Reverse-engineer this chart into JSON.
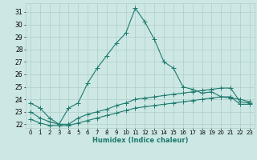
{
  "xlabel": "Humidex (Indice chaleur)",
  "xlim": [
    -0.5,
    23.5
  ],
  "ylim": [
    21.7,
    31.7
  ],
  "xticks": [
    0,
    1,
    2,
    3,
    4,
    5,
    6,
    7,
    8,
    9,
    10,
    11,
    12,
    13,
    14,
    15,
    16,
    17,
    18,
    19,
    20,
    21,
    22,
    23
  ],
  "yticks": [
    22,
    23,
    24,
    25,
    26,
    27,
    28,
    29,
    30,
    31
  ],
  "bg_color": "#cde8e4",
  "grid_color": "#b0ceca",
  "line_color": "#1e7a6e",
  "series1_x": [
    0,
    1,
    2,
    3,
    4,
    5,
    6,
    7,
    8,
    9,
    10,
    11,
    12,
    13,
    14,
    15,
    16,
    17,
    18,
    19,
    20,
    21,
    22,
    23
  ],
  "series1_y": [
    23.7,
    23.3,
    22.5,
    22.0,
    23.3,
    23.7,
    25.3,
    26.5,
    27.5,
    28.5,
    29.3,
    31.3,
    30.2,
    28.8,
    27.0,
    26.5,
    25.0,
    24.8,
    24.5,
    24.6,
    24.2,
    24.1,
    24.0,
    23.8
  ],
  "series2_x": [
    0,
    1,
    2,
    3,
    4,
    5,
    6,
    7,
    8,
    9,
    10,
    11,
    12,
    13,
    14,
    15,
    16,
    17,
    18,
    19,
    20,
    21,
    22,
    23
  ],
  "series2_y": [
    23.0,
    22.5,
    22.2,
    22.0,
    22.0,
    22.5,
    22.8,
    23.0,
    23.2,
    23.5,
    23.7,
    24.0,
    24.1,
    24.2,
    24.3,
    24.4,
    24.5,
    24.6,
    24.7,
    24.8,
    24.9,
    24.9,
    23.8,
    23.7
  ],
  "series3_x": [
    0,
    1,
    2,
    3,
    4,
    5,
    6,
    7,
    8,
    9,
    10,
    11,
    12,
    13,
    14,
    15,
    16,
    17,
    18,
    19,
    20,
    21,
    22,
    23
  ],
  "series3_y": [
    22.4,
    22.1,
    21.9,
    21.9,
    21.9,
    22.1,
    22.3,
    22.5,
    22.7,
    22.9,
    23.1,
    23.3,
    23.4,
    23.5,
    23.6,
    23.7,
    23.8,
    23.9,
    24.0,
    24.1,
    24.2,
    24.2,
    23.6,
    23.6
  ],
  "markersize": 2.5,
  "linewidth": 0.8
}
